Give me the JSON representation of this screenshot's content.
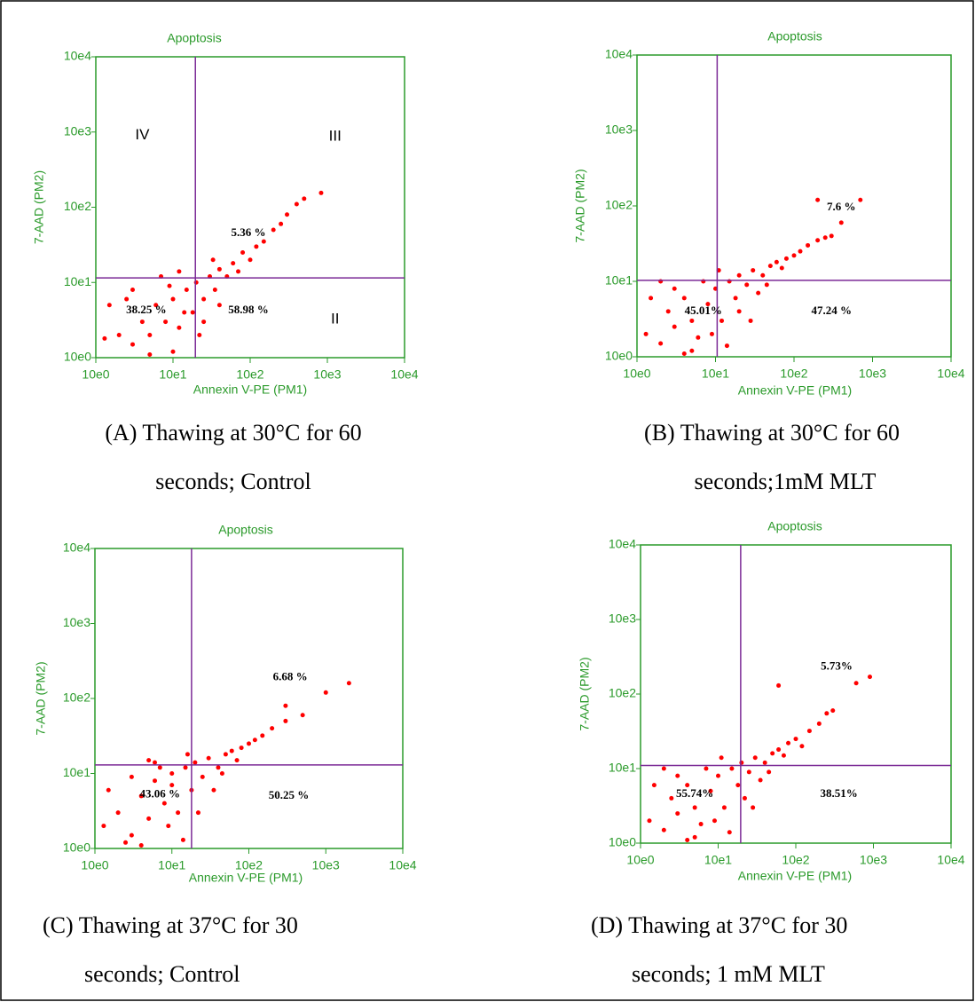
{
  "chart_data": [
    {
      "type": "scatter",
      "title": "Apoptosis",
      "x_label": "Annexin V-PE (PM1)",
      "y_label": "7-AAD (PM2)",
      "color": "#ff0000",
      "log_scale": true,
      "xlim": [
        1,
        10000
      ],
      "ylim": [
        1,
        10000
      ],
      "xticks": [
        {
          "value": 1,
          "label": "10e0"
        },
        {
          "value": 10,
          "label": "10e1"
        },
        {
          "value": 100,
          "label": "10e2"
        },
        {
          "value": 1000,
          "label": "10e3"
        },
        {
          "value": 10000,
          "label": "10e4"
        }
      ],
      "yticks": [
        {
          "value": 1,
          "label": "10e0"
        },
        {
          "value": 10,
          "label": "10e1"
        },
        {
          "value": 100,
          "label": "10e2"
        },
        {
          "value": 1000,
          "label": "10e3"
        },
        {
          "value": 10000,
          "label": "10e4"
        }
      ],
      "quadrant": {
        "x": 19.5,
        "y": 11.5
      },
      "annotations": [
        {
          "text": "IV",
          "x": 4,
          "y": 900
        },
        {
          "text": "III",
          "x": 1260,
          "y": 870
        },
        {
          "text": "II",
          "x": 1260,
          "y": 3.2
        },
        {
          "text": "5.36 %",
          "x": 95,
          "y": 45
        },
        {
          "text": "38.25 %",
          "x": 4.5,
          "y": 4.2
        },
        {
          "text": "58.98 %",
          "x": 95,
          "y": 4.2
        }
      ],
      "x": [
        2,
        3,
        4,
        5,
        6,
        8,
        10,
        12,
        15,
        18,
        20,
        25,
        30,
        35,
        40,
        50,
        60,
        70,
        80,
        100,
        120,
        150,
        200,
        250,
        300,
        400,
        500,
        830,
        1.5,
        3,
        7,
        12,
        25,
        40,
        10,
        5,
        1.3,
        2.5,
        9,
        14,
        22,
        33
      ],
      "values": [
        2,
        1.5,
        3,
        2,
        5,
        3,
        6,
        2.5,
        8,
        4,
        10,
        6,
        12,
        8,
        15,
        12,
        18,
        14,
        25,
        20,
        30,
        35,
        50,
        60,
        80,
        110,
        130,
        155,
        5,
        8,
        12,
        14,
        3,
        5,
        1.2,
        1.1,
        1.8,
        6,
        9,
        4,
        2,
        20
      ],
      "caption": [
        "(A) Thawing at 30°C for 60",
        "seconds; Control"
      ]
    },
    {
      "type": "scatter",
      "title": "Apoptosis",
      "x_label": "Annexin V-PE (PM1)",
      "y_label": "7-AAD (PM2)",
      "color": "#ff0000",
      "log_scale": true,
      "xlim": [
        1,
        10000
      ],
      "ylim": [
        1,
        10000
      ],
      "xticks": [
        {
          "value": 1,
          "label": "10e0"
        },
        {
          "value": 10,
          "label": "10e1"
        },
        {
          "value": 100,
          "label": "10e2"
        },
        {
          "value": 1000,
          "label": "10e3"
        },
        {
          "value": 10000,
          "label": "10e4"
        }
      ],
      "yticks": [
        {
          "value": 1,
          "label": "10e0"
        },
        {
          "value": 10,
          "label": "10e1"
        },
        {
          "value": 100,
          "label": "10e2"
        },
        {
          "value": 1000,
          "label": "10e3"
        },
        {
          "value": 10000,
          "label": "10e4"
        }
      ],
      "quadrant": {
        "x": 10.5,
        "y": 10.3
      },
      "annotations": [
        {
          "text": "7.6 %",
          "x": 400,
          "y": 95
        },
        {
          "text": "45.01%",
          "x": 7,
          "y": 4
        },
        {
          "text": "47.24 %",
          "x": 300,
          "y": 4
        }
      ],
      "x": [
        1.3,
        2,
        2.5,
        3,
        4,
        5,
        6,
        8,
        10,
        12,
        15,
        18,
        20,
        25,
        30,
        40,
        50,
        60,
        80,
        100,
        120,
        150,
        200,
        250,
        300,
        200,
        400,
        700,
        1.5,
        3,
        5,
        7,
        9,
        14,
        20,
        35,
        2,
        4,
        11,
        28,
        45,
        70
      ],
      "values": [
        2,
        1.5,
        4,
        2.5,
        6,
        3,
        1.8,
        5,
        8,
        3,
        10,
        6,
        12,
        9,
        14,
        12,
        16,
        18,
        20,
        22,
        25,
        30,
        35,
        38,
        40,
        120,
        60,
        120,
        6,
        8,
        1.2,
        10,
        2,
        1.4,
        4,
        7,
        10,
        1.1,
        14,
        3,
        9,
        15
      ],
      "caption": [
        "(B) Thawing at 30°C for 60",
        "seconds;1mM MLT"
      ]
    },
    {
      "type": "scatter",
      "title": "Apoptosis",
      "x_label": "Annexin V-PE (PM1)",
      "y_label": "7-AAD (PM2)",
      "color": "#ff0000",
      "log_scale": true,
      "xlim": [
        1,
        10000
      ],
      "ylim": [
        1,
        10000
      ],
      "xticks": [
        {
          "value": 1,
          "label": "10e0"
        },
        {
          "value": 10,
          "label": "10e1"
        },
        {
          "value": 100,
          "label": "10e2"
        },
        {
          "value": 1000,
          "label": "10e3"
        },
        {
          "value": 10000,
          "label": "10e4"
        }
      ],
      "yticks": [
        {
          "value": 1,
          "label": "10e0"
        },
        {
          "value": 10,
          "label": "10e1"
        },
        {
          "value": 100,
          "label": "10e2"
        },
        {
          "value": 1000,
          "label": "10e3"
        },
        {
          "value": 10000,
          "label": "10e4"
        }
      ],
      "quadrant": {
        "x": 18,
        "y": 13
      },
      "annotations": [
        {
          "text": "6.68 %",
          "x": 345,
          "y": 190
        },
        {
          "text": "43.06 %",
          "x": 7,
          "y": 5.2
        },
        {
          "text": "50.25 %",
          "x": 330,
          "y": 5
        }
      ],
      "x": [
        1.3,
        2,
        3,
        4,
        5,
        6,
        8,
        10,
        12,
        15,
        18,
        20,
        25,
        30,
        40,
        50,
        60,
        80,
        100,
        120,
        150,
        200,
        300,
        500,
        300,
        1000,
        2000,
        1.5,
        2.5,
        4,
        7,
        9,
        14,
        22,
        35,
        5,
        10,
        3,
        6,
        16,
        45,
        70
      ],
      "values": [
        2,
        3,
        1.5,
        5,
        2.5,
        8,
        4,
        10,
        3,
        12,
        6,
        14,
        9,
        16,
        12,
        18,
        20,
        22,
        25,
        28,
        32,
        40,
        50,
        60,
        80,
        120,
        160,
        6,
        1.2,
        1.1,
        12,
        2,
        1.3,
        3,
        6,
        15,
        7,
        9,
        14,
        18,
        10,
        15
      ],
      "caption": [
        "(C) Thawing at 37°C for 30",
        "seconds; Control"
      ]
    },
    {
      "type": "scatter",
      "title": "Apoptosis",
      "x_label": "Annexin V-PE (PM1)",
      "y_label": "7-AAD (PM2)",
      "color": "#ff0000",
      "log_scale": true,
      "xlim": [
        1,
        10000
      ],
      "ylim": [
        1,
        10000
      ],
      "xticks": [
        {
          "value": 1,
          "label": "10e0"
        },
        {
          "value": 10,
          "label": "10e1"
        },
        {
          "value": 100,
          "label": "10e2"
        },
        {
          "value": 1000,
          "label": "10e3"
        },
        {
          "value": 10000,
          "label": "10e4"
        }
      ],
      "yticks": [
        {
          "value": 1,
          "label": "10e0"
        },
        {
          "value": 10,
          "label": "10e1"
        },
        {
          "value": 100,
          "label": "10e2"
        },
        {
          "value": 1000,
          "label": "10e3"
        },
        {
          "value": 10000,
          "label": "10e4"
        }
      ],
      "quadrant": {
        "x": 19.5,
        "y": 11
      },
      "annotations": [
        {
          "text": "5.73%",
          "x": 335,
          "y": 230
        },
        {
          "text": "55.74%",
          "x": 5,
          "y": 4.5
        },
        {
          "text": "38.51%",
          "x": 360,
          "y": 4.5
        }
      ],
      "x": [
        1.3,
        2,
        2.5,
        3,
        4,
        5,
        6,
        8,
        10,
        12,
        15,
        18,
        20,
        25,
        30,
        40,
        50,
        60,
        80,
        100,
        150,
        200,
        250,
        300,
        60,
        600,
        900,
        1.5,
        3,
        5,
        7,
        9,
        14,
        22,
        35,
        2,
        4,
        11,
        28,
        45,
        70,
        120
      ],
      "values": [
        2,
        1.5,
        4,
        2.5,
        6,
        3,
        1.8,
        5,
        8,
        3,
        10,
        6,
        12,
        9,
        14,
        12,
        16,
        18,
        22,
        25,
        32,
        40,
        55,
        60,
        130,
        140,
        170,
        6,
        8,
        1.2,
        10,
        2,
        1.4,
        4,
        7,
        10,
        1.1,
        14,
        3,
        9,
        15,
        20
      ],
      "caption": [
        "(D) Thawing at 37°C for 30",
        "seconds; 1 mM MLT"
      ]
    }
  ]
}
